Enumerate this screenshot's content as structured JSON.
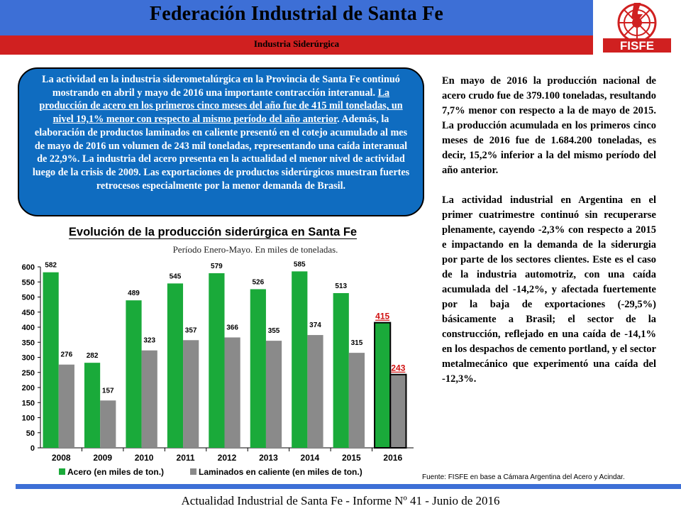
{
  "header": {
    "title": "Federación Industrial de Santa Fe",
    "subtitle": "Industria Siderúrgica",
    "logo_text": "FISFE"
  },
  "callout": {
    "text_before": "La actividad en la industria siderometalúrgica en la Provincia de Santa Fe continuó mostrando en abril y mayo de 2016 una importante contracción interanual. ",
    "text_underlined": "La producción de acero en los primeros cinco meses del año fue de 415 mil toneladas, un nivel 19,1% menor con respecto al mismo período del año anterior",
    "text_after": ". Además, la elaboración de productos laminados en caliente presentó en el cotejo acumulado al mes de mayo de 2016 un volumen de 243 mil toneladas, representando una caída interanual de 22,9%. La industria del acero presenta en la actualidad el menor nivel de actividad luego de la crisis de 2009. Las exportaciones de productos siderúrgicos muestran fuertes retrocesos especialmente por la menor demanda de Brasil."
  },
  "side": {
    "para1": "En mayo de 2016 la producción nacional de acero crudo fue de 379.100 toneladas, resultando 7,7% menor con respecto a la de mayo de 2015. La producción acumulada en los primeros cinco meses de 2016 fue de 1.684.200 toneladas, es decir, 15,2% inferior a la del mismo período del año anterior.",
    "para2": "La actividad industrial en Argentina en el primer cuatrimestre continuó sin recuperarse plenamente, cayendo -2,3% con respecto a 2015 e impactando en la demanda de la siderurgia por parte de los sectores clientes. Este es el caso de la industria automotriz, con una caída acumulada del -14,2%, y afectada fuertemente por la baja de exportaciones (-29,5%) básicamente a Brasil; el sector de la construcción, reflejado en una caída de -14,1% en los despachos de cemento portland, y el sector metalmecánico que experimentó una caída del -12,3%."
  },
  "chart_data": {
    "type": "bar",
    "title": "Evolución de la producción siderúrgica en Santa Fe",
    "subtitle": "Período Enero-Mayo. En miles de toneladas.",
    "categories": [
      "2008",
      "2009",
      "2010",
      "2011",
      "2012",
      "2013",
      "2014",
      "2015",
      "2016"
    ],
    "series": [
      {
        "name": "Acero (en miles de ton.)",
        "color": "#1aaa3a",
        "values": [
          582,
          282,
          489,
          545,
          579,
          526,
          585,
          513,
          415
        ]
      },
      {
        "name": "Laminados en caliente (en miles de ton.)",
        "color": "#8a8a8a",
        "values": [
          276,
          157,
          323,
          357,
          366,
          355,
          374,
          315,
          243
        ]
      }
    ],
    "ylim": [
      0,
      600
    ],
    "yticks": [
      0,
      50,
      100,
      150,
      200,
      250,
      300,
      350,
      400,
      450,
      500,
      550,
      600
    ],
    "highlight_category": "2016",
    "highlight_label_color": "#d01010",
    "legend_position": "bottom",
    "grid": false
  },
  "source": "Fuente: FISFE en base a Cámara Argentina del Acero y Acindar.",
  "footer": "Actualidad Industrial de Santa Fe - Informe Nº 41 - Junio de 2016"
}
